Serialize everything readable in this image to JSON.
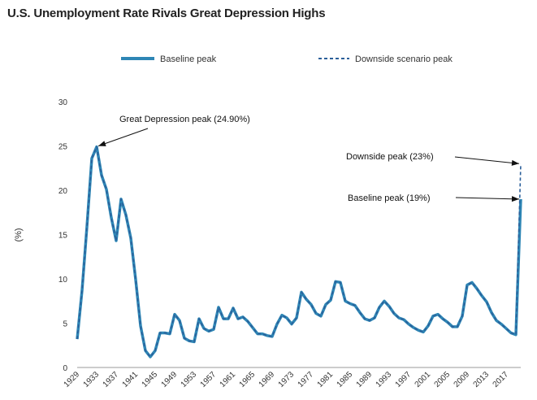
{
  "chart_data": {
    "type": "line",
    "title": "U.S. Unemployment Rate Rivals Great Depression Highs",
    "xlabel": "",
    "ylabel": "(%)",
    "ylim": [
      0,
      30
    ],
    "yticks": [
      0,
      5,
      10,
      15,
      20,
      25,
      30
    ],
    "xticks": [
      "1929",
      "1933",
      "1937",
      "1941",
      "1945",
      "1949",
      "1953",
      "1957",
      "1961",
      "1965",
      "1969",
      "1973",
      "1977",
      "1981",
      "1985",
      "1989",
      "1993",
      "1997",
      "2001",
      "2005",
      "2009",
      "2013",
      "2017"
    ],
    "xlim": [
      1929,
      2020
    ],
    "grid": false,
    "legend_position": "top",
    "colors": {
      "line": "#2e86b5",
      "text": "#222222",
      "axis": "#999999"
    },
    "series": [
      {
        "name": "Baseline peak",
        "style": "solid",
        "x": [
          1929,
          1930,
          1931,
          1932,
          1933,
          1934,
          1935,
          1936,
          1937,
          1938,
          1939,
          1940,
          1941,
          1942,
          1943,
          1944,
          1945,
          1946,
          1947,
          1948,
          1949,
          1950,
          1951,
          1952,
          1953,
          1954,
          1955,
          1956,
          1957,
          1958,
          1959,
          1960,
          1961,
          1962,
          1963,
          1964,
          1965,
          1966,
          1967,
          1968,
          1969,
          1970,
          1971,
          1972,
          1973,
          1974,
          1975,
          1976,
          1977,
          1978,
          1979,
          1980,
          1981,
          1982,
          1983,
          1984,
          1985,
          1986,
          1987,
          1988,
          1989,
          1990,
          1991,
          1992,
          1993,
          1994,
          1995,
          1996,
          1997,
          1998,
          1999,
          2000,
          2001,
          2002,
          2003,
          2004,
          2005,
          2006,
          2007,
          2008,
          2009,
          2010,
          2011,
          2012,
          2013,
          2014,
          2015,
          2016,
          2017,
          2018,
          2019,
          2020
        ],
        "values": [
          3.2,
          8.7,
          15.9,
          23.6,
          24.9,
          21.7,
          20.1,
          16.9,
          14.3,
          19.0,
          17.2,
          14.6,
          9.9,
          4.7,
          1.9,
          1.2,
          1.9,
          3.9,
          3.9,
          3.8,
          6.0,
          5.3,
          3.3,
          3.0,
          2.9,
          5.5,
          4.4,
          4.1,
          4.3,
          6.8,
          5.5,
          5.5,
          6.7,
          5.5,
          5.7,
          5.2,
          4.5,
          3.8,
          3.8,
          3.6,
          3.5,
          4.9,
          5.9,
          5.6,
          4.9,
          5.6,
          8.5,
          7.7,
          7.1,
          6.1,
          5.8,
          7.1,
          7.6,
          9.7,
          9.6,
          7.5,
          7.2,
          7.0,
          6.2,
          5.5,
          5.3,
          5.6,
          6.8,
          7.5,
          6.9,
          6.1,
          5.6,
          5.4,
          4.9,
          4.5,
          4.2,
          4.0,
          4.7,
          5.8,
          6.0,
          5.5,
          5.1,
          4.6,
          4.6,
          5.8,
          9.3,
          9.6,
          8.9,
          8.1,
          7.4,
          6.2,
          5.3,
          4.9,
          4.4,
          3.9,
          3.7,
          19.0
        ]
      },
      {
        "name": "Downside scenario peak",
        "style": "dashed",
        "x": [
          1929,
          1930,
          1931,
          1932,
          1933,
          1934,
          1935,
          1936,
          1937,
          1938,
          1939,
          1940,
          1941,
          1942,
          1943,
          1944,
          1945,
          1946,
          1947,
          1948,
          1949,
          1950,
          1951,
          1952,
          1953,
          1954,
          1955,
          1956,
          1957,
          1958,
          1959,
          1960,
          1961,
          1962,
          1963,
          1964,
          1965,
          1966,
          1967,
          1968,
          1969,
          1970,
          1971,
          1972,
          1973,
          1974,
          1975,
          1976,
          1977,
          1978,
          1979,
          1980,
          1981,
          1982,
          1983,
          1984,
          1985,
          1986,
          1987,
          1988,
          1989,
          1990,
          1991,
          1992,
          1993,
          1994,
          1995,
          1996,
          1997,
          1998,
          1999,
          2000,
          2001,
          2002,
          2003,
          2004,
          2005,
          2006,
          2007,
          2008,
          2009,
          2010,
          2011,
          2012,
          2013,
          2014,
          2015,
          2016,
          2017,
          2018,
          2019,
          2020
        ],
        "values": [
          3.2,
          8.7,
          15.9,
          23.6,
          24.9,
          21.7,
          20.1,
          16.9,
          14.3,
          19.0,
          17.2,
          14.6,
          9.9,
          4.7,
          1.9,
          1.2,
          1.9,
          3.9,
          3.9,
          3.8,
          6.0,
          5.3,
          3.3,
          3.0,
          2.9,
          5.5,
          4.4,
          4.1,
          4.3,
          6.8,
          5.5,
          5.5,
          6.7,
          5.5,
          5.7,
          5.2,
          4.5,
          3.8,
          3.8,
          3.6,
          3.5,
          4.9,
          5.9,
          5.6,
          4.9,
          5.6,
          8.5,
          7.7,
          7.1,
          6.1,
          5.8,
          7.1,
          7.6,
          9.7,
          9.6,
          7.5,
          7.2,
          7.0,
          6.2,
          5.5,
          5.3,
          5.6,
          6.8,
          7.5,
          6.9,
          6.1,
          5.6,
          5.4,
          4.9,
          4.5,
          4.2,
          4.0,
          4.7,
          5.8,
          6.0,
          5.5,
          5.1,
          4.6,
          4.6,
          5.8,
          9.3,
          9.6,
          8.9,
          8.1,
          7.4,
          6.2,
          5.3,
          4.9,
          4.4,
          3.9,
          3.7,
          23.0
        ]
      }
    ],
    "annotations": [
      {
        "text": "Great Depression peak (24.90%)",
        "x": 1933,
        "y": 24.9
      },
      {
        "text": "Downside peak (23%)",
        "x": 2020,
        "y": 23
      },
      {
        "text": "Baseline peak (19%)",
        "x": 2020,
        "y": 19
      }
    ]
  }
}
